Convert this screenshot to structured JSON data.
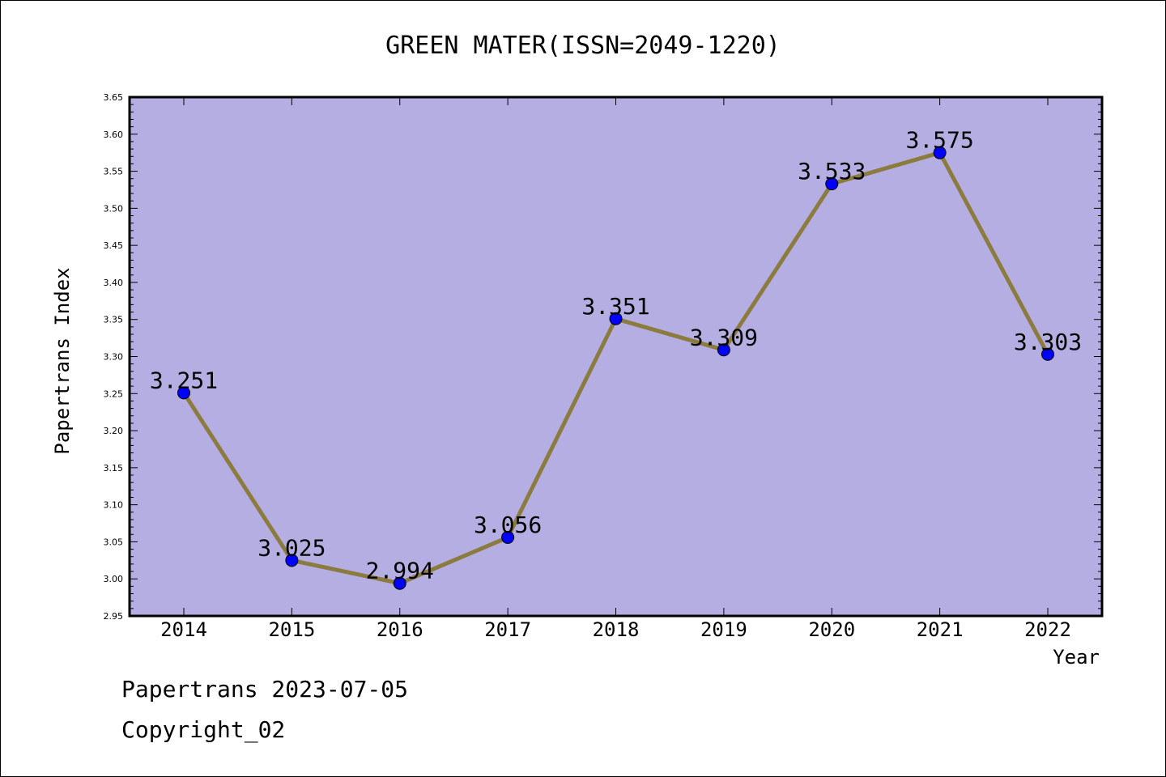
{
  "chart_data": {
    "type": "line",
    "title": "GREEN MATER(ISSN=2049-1220)",
    "xlabel": "Year",
    "ylabel": "Papertrans Index",
    "categories": [
      "2014",
      "2015",
      "2016",
      "2017",
      "2018",
      "2019",
      "2020",
      "2021",
      "2022"
    ],
    "series": [
      {
        "values": [
          3.251,
          3.025,
          2.994,
          3.056,
          3.351,
          3.309,
          3.533,
          3.575,
          3.303
        ],
        "labels": [
          "3.251",
          "3.025",
          "2.994",
          "3.056",
          "3.351",
          "3.309",
          "3.533",
          "3.575",
          "3.303"
        ]
      }
    ],
    "ylim": [
      2.95,
      3.65
    ],
    "yticks": [
      "2.95",
      "3.00",
      "3.05",
      "3.10",
      "3.15",
      "3.20",
      "3.25",
      "3.30",
      "3.35",
      "3.40",
      "3.45",
      "3.50",
      "3.55",
      "3.60",
      "3.65"
    ],
    "grid": false,
    "colors": {
      "plot_background": "#b4aee2",
      "line": "#8b7b3e",
      "marker": "#0000ff"
    }
  },
  "footer": {
    "line1": "Papertrans 2023-07-05",
    "line2": "Copyright_02"
  }
}
